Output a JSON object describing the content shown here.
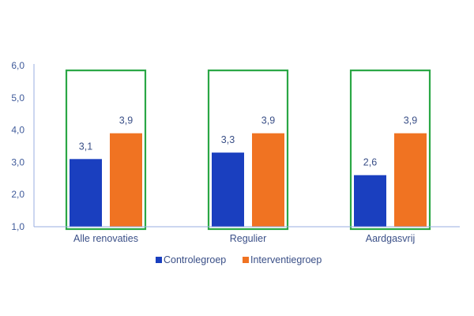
{
  "chart_data": {
    "type": "bar",
    "title": "",
    "xlabel": "",
    "ylabel": "",
    "ylim": [
      1.0,
      6.0
    ],
    "yticks": [
      "1,0",
      "2,0",
      "3,0",
      "4,0",
      "5,0",
      "6,0"
    ],
    "categories": [
      "Alle renovaties",
      "Regulier",
      "Aardgasvrij"
    ],
    "series": [
      {
        "name": "Controlegroep",
        "color": "#1a3fbf",
        "values": [
          3.1,
          3.3,
          2.6
        ],
        "labels": [
          "3,1",
          "3,3",
          "2,6"
        ]
      },
      {
        "name": "Interventiegroep",
        "color": "#f07322",
        "values": [
          3.9,
          3.9,
          3.9
        ],
        "labels": [
          "3,9",
          "3,9",
          "3,9"
        ]
      }
    ],
    "highlight_color": "#2aa745",
    "axis_color": "#9aaee0",
    "legend_position": "bottom-center"
  }
}
